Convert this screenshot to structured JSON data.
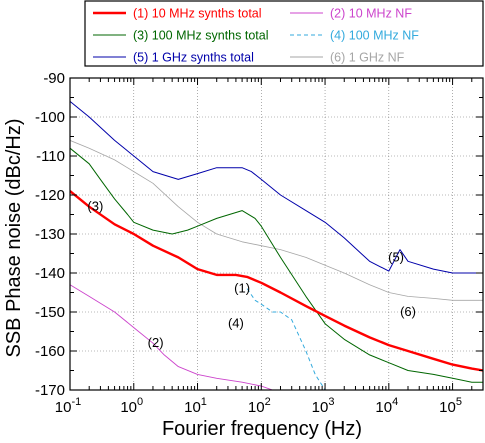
{
  "chart_data": {
    "type": "line",
    "title": "",
    "xlabel": "Fourier frequency (Hz)",
    "ylabel": "SSB Phase noise (dBc/Hz)",
    "x_scale": "log",
    "xlim": [
      0.1,
      300000
    ],
    "ylim": [
      -170,
      -90
    ],
    "grid": true,
    "legend_position": "top",
    "x_ticks": [
      {
        "value": 0.1,
        "base": "10",
        "exp": "-1"
      },
      {
        "value": 1,
        "base": "10",
        "exp": "0"
      },
      {
        "value": 10,
        "base": "10",
        "exp": "1"
      },
      {
        "value": 100,
        "base": "10",
        "exp": "2"
      },
      {
        "value": 1000,
        "base": "10",
        "exp": "3"
      },
      {
        "value": 10000,
        "base": "10",
        "exp": "4"
      },
      {
        "value": 100000,
        "base": "10",
        "exp": "5"
      }
    ],
    "y_ticks": [
      -90,
      -100,
      -110,
      -120,
      -130,
      -140,
      -150,
      -160,
      -170
    ],
    "series": [
      {
        "name": "(1) 10 MHz synths total",
        "color": "#ff0000",
        "style": "solid",
        "width": 2.4,
        "x": [
          0.1,
          0.2,
          0.5,
          1,
          2,
          5,
          10,
          20,
          40,
          60,
          100,
          200,
          500,
          1000,
          2000,
          5000,
          10000,
          20000,
          50000,
          100000,
          200000,
          300000
        ],
        "y": [
          -119,
          -123,
          -127.5,
          -130,
          -133,
          -136,
          -139,
          -140.5,
          -140.5,
          -141,
          -142.5,
          -145,
          -148.5,
          -151,
          -153.5,
          -156.5,
          -158.5,
          -160,
          -162,
          -163.5,
          -164.5,
          -165
        ]
      },
      {
        "name": "(2) 10 MHz NF",
        "color": "#cc44cc",
        "style": "solid",
        "width": 0.9,
        "x": [
          0.1,
          0.2,
          0.5,
          1,
          2,
          3,
          5,
          10,
          20,
          50,
          100,
          150
        ],
        "y": [
          -143,
          -146,
          -150,
          -154,
          -158,
          -161,
          -164,
          -166,
          -167,
          -168,
          -169,
          -170
        ]
      },
      {
        "name": "(3) 100 MHz synths total",
        "color": "#006600",
        "style": "solid",
        "width": 1.0,
        "x": [
          0.1,
          0.2,
          0.3,
          0.5,
          0.8,
          1,
          2,
          4,
          7,
          10,
          20,
          50,
          80,
          100,
          200,
          500,
          1000,
          2000,
          5000,
          10000,
          20000,
          50000,
          100000,
          200000,
          300000
        ],
        "y": [
          -108,
          -112,
          -116,
          -121,
          -125,
          -127,
          -129,
          -130,
          -129,
          -128,
          -126,
          -124,
          -126,
          -128,
          -136,
          -146,
          -153,
          -157,
          -161,
          -163,
          -165,
          -166,
          -167,
          -168,
          -168
        ]
      },
      {
        "name": "(4) 100 MHz NF",
        "color": "#33aadd",
        "style": "dashed",
        "width": 1.0,
        "x": [
          60,
          80,
          100,
          150,
          200,
          300,
          500,
          700,
          1000
        ],
        "y": [
          -144,
          -147,
          -148,
          -150,
          -150,
          -152,
          -160,
          -166,
          -170
        ]
      },
      {
        "name": "(5) 1 GHz synths total",
        "color": "#0000aa",
        "style": "solid",
        "width": 1.0,
        "x": [
          0.1,
          0.2,
          0.5,
          1,
          2,
          5,
          10,
          20,
          50,
          70,
          100,
          200,
          500,
          1000,
          2000,
          5000,
          10000,
          15000,
          20000,
          50000,
          100000,
          200000,
          300000
        ],
        "y": [
          -96,
          -100,
          -106,
          -110,
          -114,
          -116,
          -114.5,
          -113,
          -113,
          -114,
          -116,
          -120,
          -124,
          -127,
          -131,
          -137,
          -139.5,
          -134,
          -137,
          -139,
          -140,
          -140,
          -140
        ]
      },
      {
        "name": "(6) 1 GHz NF",
        "color": "#a6a6a6",
        "style": "solid",
        "width": 0.8,
        "x": [
          0.1,
          0.2,
          0.5,
          1,
          2,
          5,
          10,
          20,
          50,
          100,
          200,
          500,
          1000,
          2000,
          5000,
          10000,
          20000,
          50000,
          100000,
          200000,
          300000
        ],
        "y": [
          -106,
          -108,
          -111,
          -114,
          -117,
          -123,
          -127,
          -130,
          -132,
          -133,
          -134,
          -136,
          -138,
          -140,
          -143,
          -145,
          -146,
          -146.5,
          -147,
          -147,
          -147
        ]
      }
    ],
    "annotations": [
      {
        "text": "(1)",
        "x": 50,
        "y": -145
      },
      {
        "text": "(2)",
        "x": 2.2,
        "y": -159
      },
      {
        "text": "(3)",
        "x": 0.25,
        "y": -124
      },
      {
        "text": "(4)",
        "x": 40,
        "y": -154
      },
      {
        "text": "(5)",
        "x": 13000,
        "y": -137
      },
      {
        "text": "(6)",
        "x": 20000,
        "y": -151
      }
    ]
  }
}
